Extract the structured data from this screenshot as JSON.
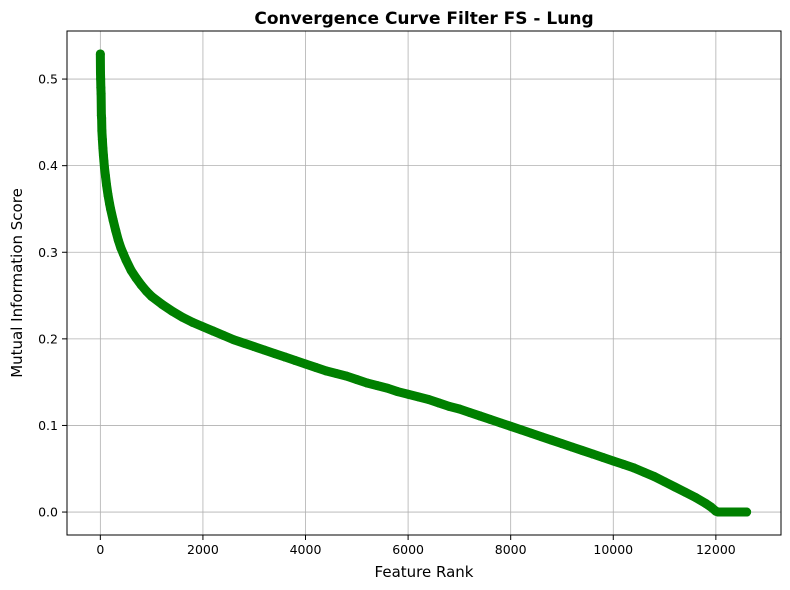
{
  "chart_data": {
    "type": "line",
    "title": "Convergence Curve Filter FS - Lung",
    "xlabel": "Feature Rank",
    "ylabel": "Mutual Information Score",
    "xlim": [
      -650,
      13270
    ],
    "ylim": [
      -0.0265,
      0.5555
    ],
    "xticks": [
      0,
      2000,
      4000,
      6000,
      8000,
      10000,
      12000
    ],
    "yticks": [
      0.0,
      0.1,
      0.2,
      0.3,
      0.4,
      0.5
    ],
    "xtick_labels": [
      "0",
      "2000",
      "4000",
      "6000",
      "8000",
      "10000",
      "12000"
    ],
    "ytick_labels": [
      "0.0",
      "0.1",
      "0.2",
      "0.3",
      "0.4",
      "0.5"
    ],
    "grid": true,
    "color": "#008000",
    "marker": "circle",
    "series": [
      {
        "x": [
          0,
          3,
          6,
          10,
          15,
          20,
          25,
          30,
          40,
          50,
          60,
          70,
          80,
          100,
          120,
          150,
          180,
          200,
          250,
          300,
          350,
          400,
          450,
          500,
          600,
          700,
          800,
          900,
          1000,
          1200,
          1400,
          1600,
          1800,
          2000,
          2200,
          2400,
          2600,
          2800,
          3000,
          3200,
          3400,
          3600,
          3800,
          4000,
          4200,
          4400,
          4600,
          4800,
          5000,
          5200,
          5400,
          5600,
          5800,
          6000,
          6200,
          6400,
          6600,
          6800,
          7000,
          7200,
          7400,
          7600,
          7800,
          8000,
          8200,
          8400,
          8600,
          8800,
          9000,
          9200,
          9400,
          9600,
          9800,
          10000,
          10200,
          10400,
          10600,
          10800,
          11000,
          11200,
          11400,
          11600,
          11800,
          11900,
          12000,
          12050,
          12100,
          12150,
          12200,
          12300,
          12400,
          12500,
          12600
        ],
        "y": [
          0.529,
          0.507,
          0.5,
          0.49,
          0.483,
          0.458,
          0.455,
          0.44,
          0.43,
          0.42,
          0.412,
          0.405,
          0.398,
          0.388,
          0.378,
          0.366,
          0.356,
          0.35,
          0.337,
          0.325,
          0.314,
          0.305,
          0.298,
          0.291,
          0.279,
          0.27,
          0.262,
          0.255,
          0.249,
          0.24,
          0.232,
          0.225,
          0.219,
          0.214,
          0.209,
          0.204,
          0.199,
          0.195,
          0.191,
          0.187,
          0.183,
          0.179,
          0.175,
          0.171,
          0.167,
          0.163,
          0.16,
          0.157,
          0.153,
          0.149,
          0.146,
          0.143,
          0.139,
          0.136,
          0.133,
          0.13,
          0.126,
          0.122,
          0.119,
          0.115,
          0.111,
          0.107,
          0.103,
          0.099,
          0.095,
          0.091,
          0.087,
          0.083,
          0.079,
          0.075,
          0.071,
          0.067,
          0.063,
          0.059,
          0.055,
          0.051,
          0.046,
          0.041,
          0.035,
          0.029,
          0.023,
          0.017,
          0.01,
          0.006,
          0.001,
          0.0,
          0.0,
          0.0,
          0.0,
          0.0,
          0.0,
          0.0,
          0.0
        ]
      }
    ]
  }
}
